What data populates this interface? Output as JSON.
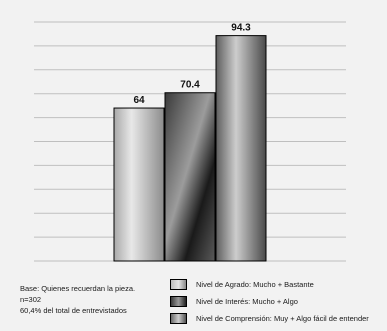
{
  "chart_data": {
    "type": "bar",
    "categories": [
      ""
    ],
    "series": [
      {
        "name": "Nivel de Agrado: Mucho + Bastante",
        "values": [
          64
        ]
      },
      {
        "name": "Nivel de Interés: Mucho + Algo",
        "values": [
          70.4
        ]
      },
      {
        "name": "Nivel de Comprensión: Muy + Algo fácil de entender",
        "values": [
          94.3
        ]
      }
    ],
    "data_labels": [
      "64",
      "70.4",
      "94.3"
    ],
    "ylim": [
      0,
      100
    ],
    "grid": true,
    "legend_position": "bottom-right",
    "title": "",
    "xlabel": "",
    "ylabel": ""
  },
  "notes": {
    "line1": "Base: Quienes recuerdan la pieza.",
    "line2": "n=302",
    "line3": "60,4% del total de entrevistados"
  },
  "legend": [
    {
      "label": "Nivel de Agrado: Mucho + Bastante"
    },
    {
      "label": "Nivel de Interés: Mucho + Algo"
    },
    {
      "label": "Nivel de Comprensión: Muy + Algo fácil de entender"
    }
  ],
  "colors": {
    "background": "#f2f2f2",
    "gridline": "#bfbfbf",
    "bar_border": "#000000",
    "text": "#111111"
  }
}
